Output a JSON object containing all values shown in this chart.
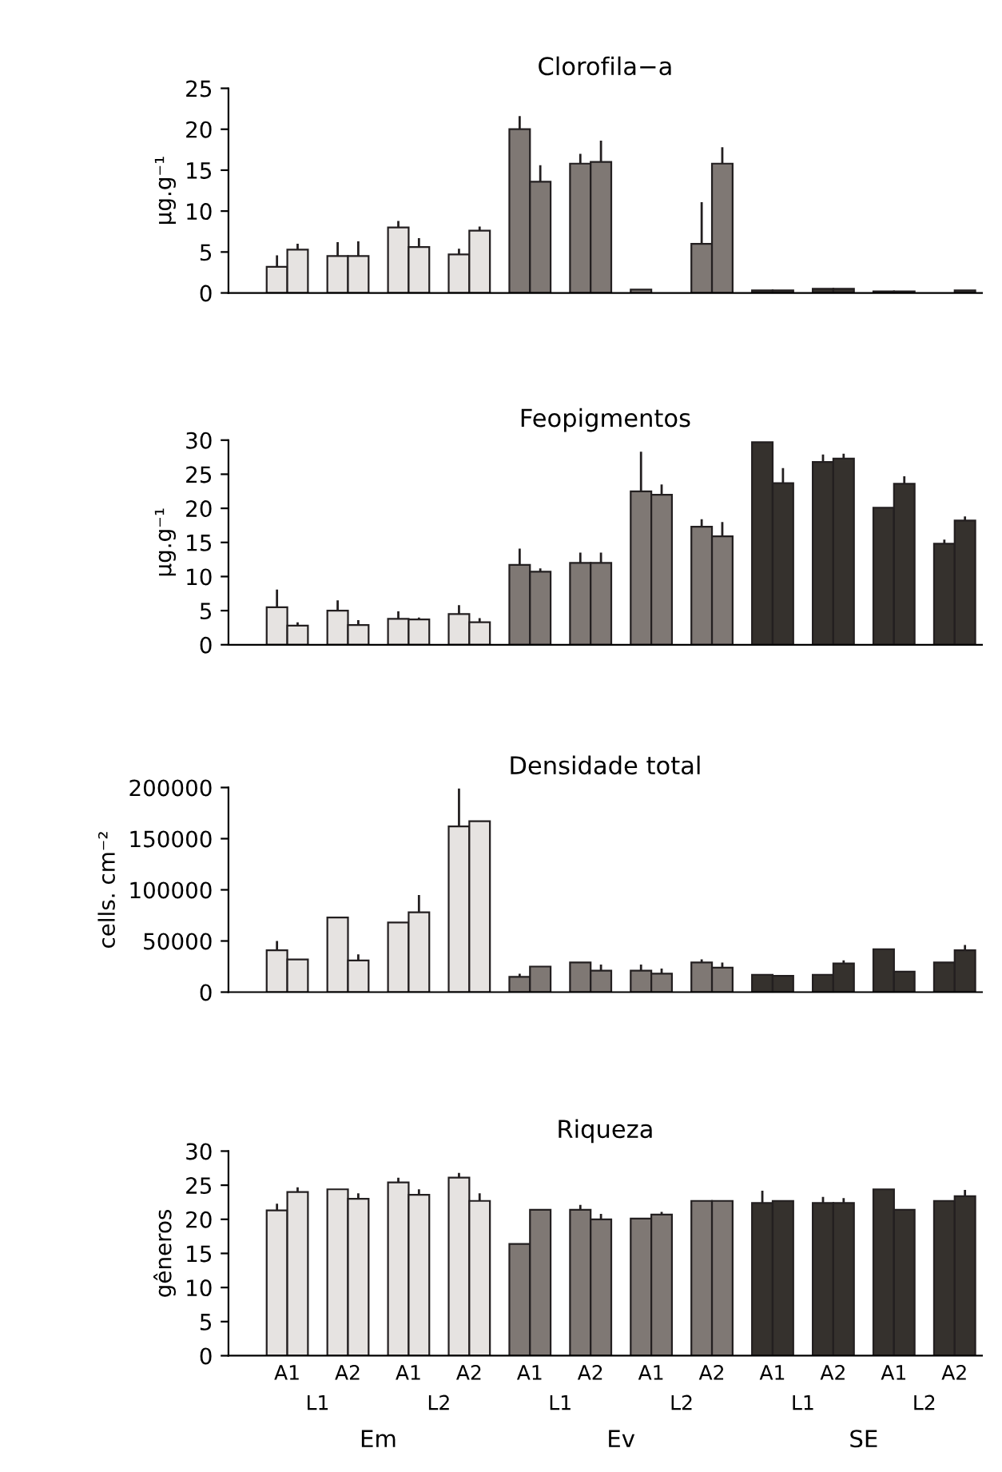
{
  "chart_data": [
    {
      "type": "bar",
      "title": "Clorofila−a",
      "ylabel": "μg.g⁻¹",
      "categories": [
        null,
        null,
        null,
        null,
        null,
        null,
        null,
        null,
        null,
        null,
        null,
        null
      ],
      "ylim": [
        0,
        25
      ],
      "yticks": [
        0,
        5,
        10,
        15,
        20,
        25
      ],
      "tick_labels": "y",
      "grid": false,
      "legend": false,
      "series": [
        {
          "colors": [
            "#e6e3e1",
            "#e6e3e1",
            "#e6e3e1",
            "#e6e3e1",
            "#7f7874",
            "#7f7874",
            "#7f7874",
            "#7f7874",
            "#35312d",
            "#35312d",
            "#35312d",
            "#35312d"
          ],
          "values": [
            3.2,
            4.5,
            8.0,
            4.7,
            20.0,
            15.8,
            0.4,
            6.0,
            0.3,
            0.5,
            0.2,
            null
          ],
          "errors": [
            [
              3.2,
              4.6
            ],
            [
              4.5,
              6.2
            ],
            [
              8.0,
              8.8
            ],
            [
              4.7,
              5.4
            ],
            [
              20.0,
              21.6
            ],
            [
              15.8,
              17.0
            ],
            null,
            [
              6.0,
              11.1
            ],
            null,
            null,
            null,
            null
          ]
        },
        {
          "colors": [
            "#e6e3e1",
            "#e6e3e1",
            "#e6e3e1",
            "#e6e3e1",
            "#7f7874",
            "#7f7874",
            "#7f7874",
            "#7f7874",
            "#35312d",
            "#35312d",
            "#35312d",
            "#35312d"
          ],
          "values": [
            5.3,
            4.5,
            5.6,
            7.6,
            13.6,
            16.0,
            null,
            15.8,
            0.3,
            0.5,
            0.2,
            0.3
          ],
          "errors": [
            [
              5.3,
              6.0
            ],
            [
              4.5,
              6.3
            ],
            [
              5.6,
              6.7
            ],
            [
              7.6,
              8.1
            ],
            [
              13.6,
              15.6
            ],
            [
              16.0,
              18.6
            ],
            null,
            [
              15.8,
              17.8
            ],
            null,
            null,
            null,
            null
          ]
        }
      ]
    },
    {
      "type": "bar",
      "title": "Feopigmentos",
      "ylabel": "μg.g⁻¹",
      "categories": [
        null,
        null,
        null,
        null,
        null,
        null,
        null,
        null,
        null,
        null,
        null,
        null
      ],
      "ylim": [
        0,
        30
      ],
      "yticks": [
        0,
        5,
        10,
        15,
        20,
        25,
        30
      ],
      "tick_labels": "y",
      "grid": false,
      "legend": false,
      "series": [
        {
          "colors": [
            "#e6e3e1",
            "#e6e3e1",
            "#e6e3e1",
            "#e6e3e1",
            "#7f7874",
            "#7f7874",
            "#7f7874",
            "#7f7874",
            "#35312d",
            "#35312d",
            "#35312d",
            "#35312d"
          ],
          "values": [
            5.5,
            5.0,
            3.8,
            4.5,
            11.7,
            12.0,
            22.5,
            17.3,
            29.7,
            26.8,
            20.1,
            14.8
          ],
          "errors": [
            [
              5.5,
              8.1
            ],
            [
              5.0,
              6.5
            ],
            [
              3.8,
              4.9
            ],
            [
              4.5,
              5.8
            ],
            [
              11.7,
              14.1
            ],
            [
              12.0,
              13.5
            ],
            [
              22.5,
              28.3
            ],
            [
              17.3,
              18.4
            ],
            null,
            [
              26.8,
              27.9
            ],
            null,
            [
              14.8,
              15.4
            ]
          ]
        },
        {
          "colors": [
            "#e6e3e1",
            "#e6e3e1",
            "#e6e3e1",
            "#e6e3e1",
            "#7f7874",
            "#7f7874",
            "#7f7874",
            "#7f7874",
            "#35312d",
            "#35312d",
            "#35312d",
            "#35312d"
          ],
          "values": [
            2.8,
            2.9,
            3.7,
            3.3,
            10.7,
            12.0,
            22.0,
            15.9,
            23.7,
            27.3,
            23.6,
            18.2
          ],
          "errors": [
            [
              2.8,
              3.3
            ],
            [
              2.9,
              3.6
            ],
            [
              3.7,
              4.0
            ],
            [
              3.3,
              3.9
            ],
            [
              10.7,
              11.2
            ],
            [
              12.0,
              13.5
            ],
            [
              22.0,
              23.5
            ],
            [
              15.9,
              18.0
            ],
            [
              23.7,
              25.9
            ],
            [
              27.3,
              28.0
            ],
            [
              23.6,
              24.7
            ],
            [
              18.2,
              18.8
            ]
          ]
        }
      ]
    },
    {
      "type": "bar",
      "title": "Densidade total",
      "ylabel": "cells. cm⁻²",
      "categories": [
        null,
        null,
        null,
        null,
        null,
        null,
        null,
        null,
        null,
        null,
        null,
        null
      ],
      "ylim": [
        0,
        200000
      ],
      "yticks": [
        0,
        50000,
        100000,
        150000,
        200000
      ],
      "tick_labels": "y",
      "grid": false,
      "legend": false,
      "series": [
        {
          "colors": [
            "#e6e3e1",
            "#e6e3e1",
            "#e6e3e1",
            "#e6e3e1",
            "#7f7874",
            "#7f7874",
            "#7f7874",
            "#7f7874",
            "#35312d",
            "#35312d",
            "#35312d",
            "#35312d"
          ],
          "values": [
            41000,
            73000,
            68000,
            162000,
            15000,
            29000,
            21000,
            29000,
            17000,
            17000,
            42000,
            29000
          ],
          "errors": [
            [
              41000,
              50000
            ],
            null,
            null,
            [
              162000,
              199000
            ],
            [
              15000,
              18000
            ],
            null,
            [
              21000,
              27000
            ],
            [
              29000,
              32000
            ],
            null,
            null,
            null,
            null
          ]
        },
        {
          "colors": [
            "#e6e3e1",
            "#e6e3e1",
            "#e6e3e1",
            "#e6e3e1",
            "#7f7874",
            "#7f7874",
            "#7f7874",
            "#7f7874",
            "#35312d",
            "#35312d",
            "#35312d",
            "#35312d"
          ],
          "values": [
            32000,
            31000,
            78000,
            167000,
            25000,
            21000,
            18000,
            24000,
            16000,
            28000,
            20000,
            41000
          ],
          "errors": [
            null,
            [
              31000,
              37000
            ],
            [
              78000,
              95000
            ],
            null,
            null,
            [
              21000,
              27000
            ],
            [
              18000,
              23000
            ],
            [
              24000,
              29000
            ],
            null,
            [
              28000,
              31000
            ],
            null,
            [
              41000,
              46000
            ]
          ]
        }
      ]
    },
    {
      "type": "bar",
      "title": "Riqueza",
      "ylabel": "gêneros",
      "categories": [
        "A1",
        "A2",
        "A1",
        "A2",
        "A1",
        "A2",
        "A1",
        "A2",
        "A1",
        "A2",
        "A1",
        "A2"
      ],
      "ylim": [
        0,
        30
      ],
      "yticks": [
        0,
        5,
        10,
        15,
        20,
        25,
        30
      ],
      "grid": false,
      "legend": false,
      "annotations": [
        "L1",
        "L2",
        "L1",
        "L2",
        "L1",
        "L2",
        "Em",
        "Ev",
        "SE"
      ],
      "series": [
        {
          "colors": [
            "#e6e3e1",
            "#e6e3e1",
            "#e6e3e1",
            "#e6e3e1",
            "#7f7874",
            "#7f7874",
            "#7f7874",
            "#7f7874",
            "#35312d",
            "#35312d",
            "#35312d",
            "#35312d"
          ],
          "values": [
            21.3,
            24.4,
            25.4,
            26.1,
            16.4,
            21.4,
            20.1,
            22.7,
            22.4,
            22.4,
            24.4,
            22.7
          ],
          "errors": [
            [
              21.3,
              22.3
            ],
            null,
            [
              25.4,
              26.1
            ],
            [
              26.1,
              26.8
            ],
            null,
            [
              21.4,
              22.1
            ],
            null,
            null,
            [
              22.4,
              24.2
            ],
            [
              22.4,
              23.3
            ],
            null,
            null
          ]
        },
        {
          "colors": [
            "#e6e3e1",
            "#e6e3e1",
            "#e6e3e1",
            "#e6e3e1",
            "#7f7874",
            "#7f7874",
            "#7f7874",
            "#7f7874",
            "#35312d",
            "#35312d",
            "#35312d",
            "#35312d"
          ],
          "values": [
            24.0,
            23.0,
            23.6,
            22.7,
            21.4,
            20.0,
            20.7,
            22.7,
            22.7,
            22.4,
            21.4,
            23.4
          ],
          "errors": [
            [
              24.0,
              24.7
            ],
            [
              23.0,
              23.8
            ],
            [
              23.6,
              24.4
            ],
            [
              22.7,
              23.8
            ],
            null,
            [
              20.0,
              20.8
            ],
            [
              20.7,
              21.1
            ],
            null,
            null,
            [
              22.4,
              23.1
            ],
            null,
            [
              23.4,
              24.3
            ]
          ]
        }
      ]
    }
  ]
}
